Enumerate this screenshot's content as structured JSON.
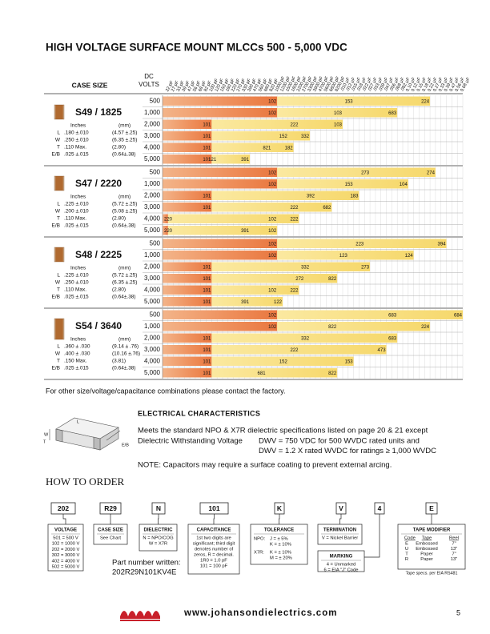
{
  "title": "HIGH VOLTAGE SURFACE MOUNT MLCCs 500 - 5,000 VDC",
  "table": {
    "case_size_header": "CASE SIZE",
    "volts_header": [
      "DC",
      "VOLTS"
    ],
    "capacitances": [
      "22 pF",
      "27 pF",
      "33 pF",
      "39 pF",
      "47 pF",
      "56 pF",
      "68 pF",
      "82 pF",
      "100 pF",
      "120 pF",
      "150 pF",
      "180 pF",
      "220 pF",
      "270 pF",
      "330 pF",
      "390 pF",
      "470 pF",
      "560 pF",
      "680 pF",
      "820 pF",
      "1000 pF",
      "1200 pF",
      "1500 pF",
      "1800 pF",
      "2200 pF",
      "2700 pF",
      "3300 pF",
      "3900 pF",
      "4700 pF",
      "5600 pF",
      "6800 pF",
      "8200 pF",
      ".010 µF",
      ".012 µF",
      ".015 µF",
      ".018 µF",
      ".022 µF",
      ".027 µF",
      ".033 µF",
      ".039 µF",
      ".047 µF",
      ".056 µF",
      ".068 µF",
      ".082 µF",
      "0.10 µF",
      "0.12 µF",
      "0.15 µF",
      "0.18 µF",
      "0.22 µF",
      "0.27 µF",
      "0.33 µF",
      "0.39 µF",
      "0.47 µF",
      "0.56 µF",
      "0.68 µF"
    ],
    "cases": [
      {
        "title": "S49 / 1825",
        "units": [
          "Inches",
          "(mm)"
        ],
        "dims": [
          [
            "L",
            ".180 ±.010",
            "(4.57 ±.25)"
          ],
          [
            "W",
            ".250 ±.010",
            "(6.35 ±.25)"
          ],
          [
            "T",
            ".110 Max.",
            "(2.80)"
          ],
          [
            "E/B",
            ".025 ±.015",
            "(0.64±.38)"
          ]
        ],
        "rows": [
          {
            "volts": "500",
            "labels": [
              "102",
              "153",
              "224"
            ]
          },
          {
            "volts": "1,000",
            "labels": [
              "102",
              "103",
              "683"
            ]
          },
          {
            "volts": "2,000",
            "labels": [
              "101",
              "222",
              "103"
            ]
          },
          {
            "volts": "3,000",
            "labels": [
              "101",
              "152",
              "332"
            ]
          },
          {
            "volts": "4,000",
            "labels": [
              "101",
              "821",
              "182"
            ]
          },
          {
            "volts": "5,000",
            "labels": [
              "101",
              "121",
              "391"
            ]
          }
        ]
      },
      {
        "title": "S47 / 2220",
        "units": [
          "Inches",
          "(mm)"
        ],
        "dims": [
          [
            "L",
            ".225 ±.010",
            "(5.72 ±.25)"
          ],
          [
            "W",
            ".200 ±.010",
            "(5.08 ±.25)"
          ],
          [
            "T",
            ".110 Max.",
            "(2.80)"
          ],
          [
            "E/B",
            ".025 ±.015",
            "(0.64±.38)"
          ]
        ],
        "rows": [
          {
            "volts": "500",
            "labels": [
              "102",
              "273",
              "274"
            ]
          },
          {
            "volts": "1,000",
            "labels": [
              "102",
              "153",
              "104"
            ]
          },
          {
            "volts": "2,000",
            "labels": [
              "101",
              "392",
              "183"
            ]
          },
          {
            "volts": "3,000",
            "labels": [
              "101",
              "222",
              "682"
            ]
          },
          {
            "volts": "4,000",
            "labels": [
              "220",
              "102",
              "222"
            ]
          },
          {
            "volts": "5,000",
            "labels": [
              "220",
              "391",
              "102"
            ]
          }
        ]
      },
      {
        "title": "S48 / 2225",
        "units": [
          "Inches",
          "(mm)"
        ],
        "dims": [
          [
            "L",
            ".225 ±.010",
            "(5.72 ±.25)"
          ],
          [
            "W",
            ".250 ±.010",
            "(6.35 ±.25)"
          ],
          [
            "T",
            ".110 Max.",
            "(2.80)"
          ],
          [
            "E/B",
            ".025 ±.015",
            "(0.64±.38)"
          ]
        ],
        "rows": [
          {
            "volts": "500",
            "labels": [
              "102",
              "223",
              "394"
            ]
          },
          {
            "volts": "1,000",
            "labels": [
              "102",
              "123",
              "124"
            ]
          },
          {
            "volts": "2,000",
            "labels": [
              "101",
              "332",
              "273"
            ]
          },
          {
            "volts": "3,000",
            "labels": [
              "101",
              "272",
              "822"
            ]
          },
          {
            "volts": "4,000",
            "labels": [
              "101",
              "102",
              "222"
            ]
          },
          {
            "volts": "5,000",
            "labels": [
              "101",
              "391",
              "122"
            ]
          }
        ]
      },
      {
        "title": "S54 / 3640",
        "units": [
          "Inches",
          "(mm)"
        ],
        "dims": [
          [
            "L",
            ".360 ± .030",
            "(9.14 ± .76)"
          ],
          [
            "W",
            ".400 ± .030",
            "(10.16 ±.76)"
          ],
          [
            "T",
            ".150 Max.",
            "(3.81)"
          ],
          [
            "E/B",
            ".025 ±.015",
            "(0.64±.38)"
          ]
        ],
        "rows": [
          {
            "volts": "500",
            "labels": [
              "102",
              "683",
              "684"
            ]
          },
          {
            "volts": "1,000",
            "labels": [
              "102",
              "822",
              "224"
            ]
          },
          {
            "volts": "2,000",
            "labels": [
              "101",
              "332",
              "683"
            ]
          },
          {
            "volts": "3,000",
            "labels": [
              "101",
              "222",
              "473"
            ]
          },
          {
            "volts": "4,000",
            "labels": [
              "101",
              "152",
              "153"
            ]
          },
          {
            "volts": "5,000",
            "labels": [
              "101",
              "681",
              "822"
            ]
          }
        ]
      }
    ]
  },
  "note": "For other size/voltage/capacitance combinations please contact the factory.",
  "drawing_labels": [
    "W",
    "L",
    "T",
    "E/B"
  ],
  "electrical": {
    "heading": "ELECTRICAL CHARACTERISTICS",
    "intro": "Meets the standard NPO & X7R dielectric specifications listed on page 20 & 21 except",
    "dwv_label": "Dielectric Withstanding Voltage",
    "dwv_lines": [
      "DWV = 750 VDC for 500 WVDC rated units and",
      "DWV = 1.2 X rated WVDC for ratings ≥ 1,000 WVDC"
    ],
    "note": "NOTE: Capacitors may require a surface coating to prevent external arcing."
  },
  "order": {
    "heading": "HOW TO ORDER",
    "codes": [
      "202",
      "R29",
      "N",
      "101",
      "K",
      "V",
      "4",
      "E"
    ],
    "voltage": {
      "title": "VOLTAGE",
      "lines": [
        "501 = 500 V",
        "102 = 1000 V",
        "202 = 2000 V",
        "302 = 3000 V",
        "402 = 4000 V",
        "502 = 5000 V"
      ]
    },
    "case_size": {
      "title": "CASE SIZE",
      "lines": [
        "See Chart"
      ]
    },
    "dielectric": {
      "title": "DIELECTRIC",
      "lines": [
        "N = NPO/COG",
        "W = X7R"
      ]
    },
    "capacitance": {
      "title": "CAPACITANCE",
      "lines": [
        "1st two digits are",
        "significant; third digit",
        "denotes number of",
        "zeros, R = decimal.",
        "1R0 = 1.0 pF",
        "101 = 100 pF"
      ]
    },
    "tolerance": {
      "title": "TOLERANCE",
      "groups": [
        {
          "label": "NPO:",
          "items": [
            "J  =  ± 5%",
            "K  =  ± 10%"
          ]
        },
        {
          "label": "X7R:",
          "items": [
            "K  =  ± 10%",
            "M  =  ± 20%"
          ]
        }
      ]
    },
    "termination": {
      "title": "TERMINATION",
      "lines": [
        "V = Nickel Barrier"
      ]
    },
    "marking": {
      "title": "MARKING",
      "lines": [
        "4 = Unmarked",
        "6 = EIA \"J\" Code"
      ]
    },
    "tape": {
      "title": "TAPE MODIFIER",
      "header": [
        "Code",
        "Tape",
        "Reel"
      ],
      "rows": [
        [
          "E",
          "Embossed",
          "7\""
        ],
        [
          "U",
          "Embossed",
          "13\""
        ],
        [
          "T",
          "Paper",
          "7\""
        ],
        [
          "R",
          "Paper",
          "13\""
        ]
      ],
      "note": "Tape specs. per EIA RS481"
    },
    "part_number": [
      "Part number written:",
      "202R29N101KV4E"
    ]
  },
  "footer": {
    "url": "www.johansondielectrics.com",
    "page": "5"
  }
}
